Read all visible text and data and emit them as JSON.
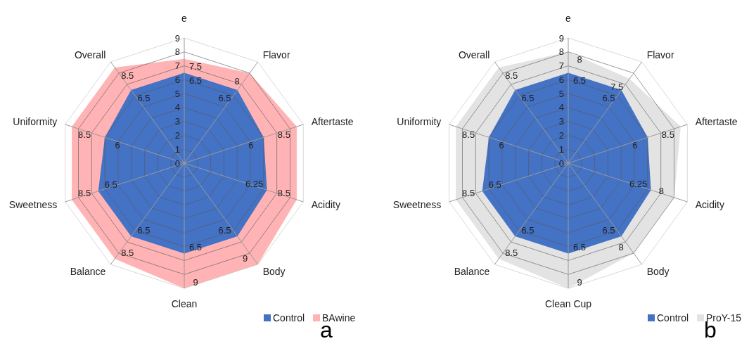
{
  "chart_data": [
    {
      "type": "radar",
      "categories": [
        "e",
        "Flavor",
        "Aftertaste",
        "Acidity",
        "Body",
        "Clean",
        "Balance",
        "Sweetness",
        "Uniformity",
        "Overall"
      ],
      "series": [
        {
          "name": "Control",
          "color": "#4472c4",
          "values": [
            6.5,
            6.5,
            6,
            6.25,
            6.5,
            6.5,
            6.5,
            6.5,
            6,
            6.5
          ]
        },
        {
          "name": "BAwine",
          "color": "#ffb3b5",
          "values": [
            7.5,
            8,
            8.5,
            8.5,
            9,
            9,
            8.5,
            8.5,
            8.5,
            8.5
          ]
        }
      ],
      "ylim": [
        0,
        9
      ],
      "yticks": [
        0,
        1,
        2,
        3,
        4,
        5,
        6,
        7,
        8,
        9
      ],
      "grid": true,
      "legend": "bottom right",
      "data_labels": true,
      "annotations": [
        "a"
      ]
    },
    {
      "type": "radar",
      "categories": [
        "e",
        "Flavor",
        "Aftertaste",
        "Acidity",
        "Body",
        "Clean Cup",
        "Balance",
        "Sweetness",
        "Uniformity",
        "Overall"
      ],
      "series": [
        {
          "name": "Control",
          "color": "#4472c4",
          "values": [
            6.5,
            6.5,
            6,
            6.25,
            6.5,
            6.5,
            6.5,
            6.5,
            6,
            6.5
          ]
        },
        {
          "name": "ProY-15",
          "color": "#e3e3e3",
          "values": [
            8,
            7.5,
            8.5,
            8,
            8,
            9,
            8.5,
            8.5,
            8.5,
            8.5
          ]
        }
      ],
      "ylim": [
        0,
        9
      ],
      "yticks": [
        0,
        1,
        2,
        3,
        4,
        5,
        6,
        7,
        8,
        9
      ],
      "grid": true,
      "legend": "bottom right",
      "data_labels": true,
      "annotations": [
        "b"
      ]
    }
  ]
}
